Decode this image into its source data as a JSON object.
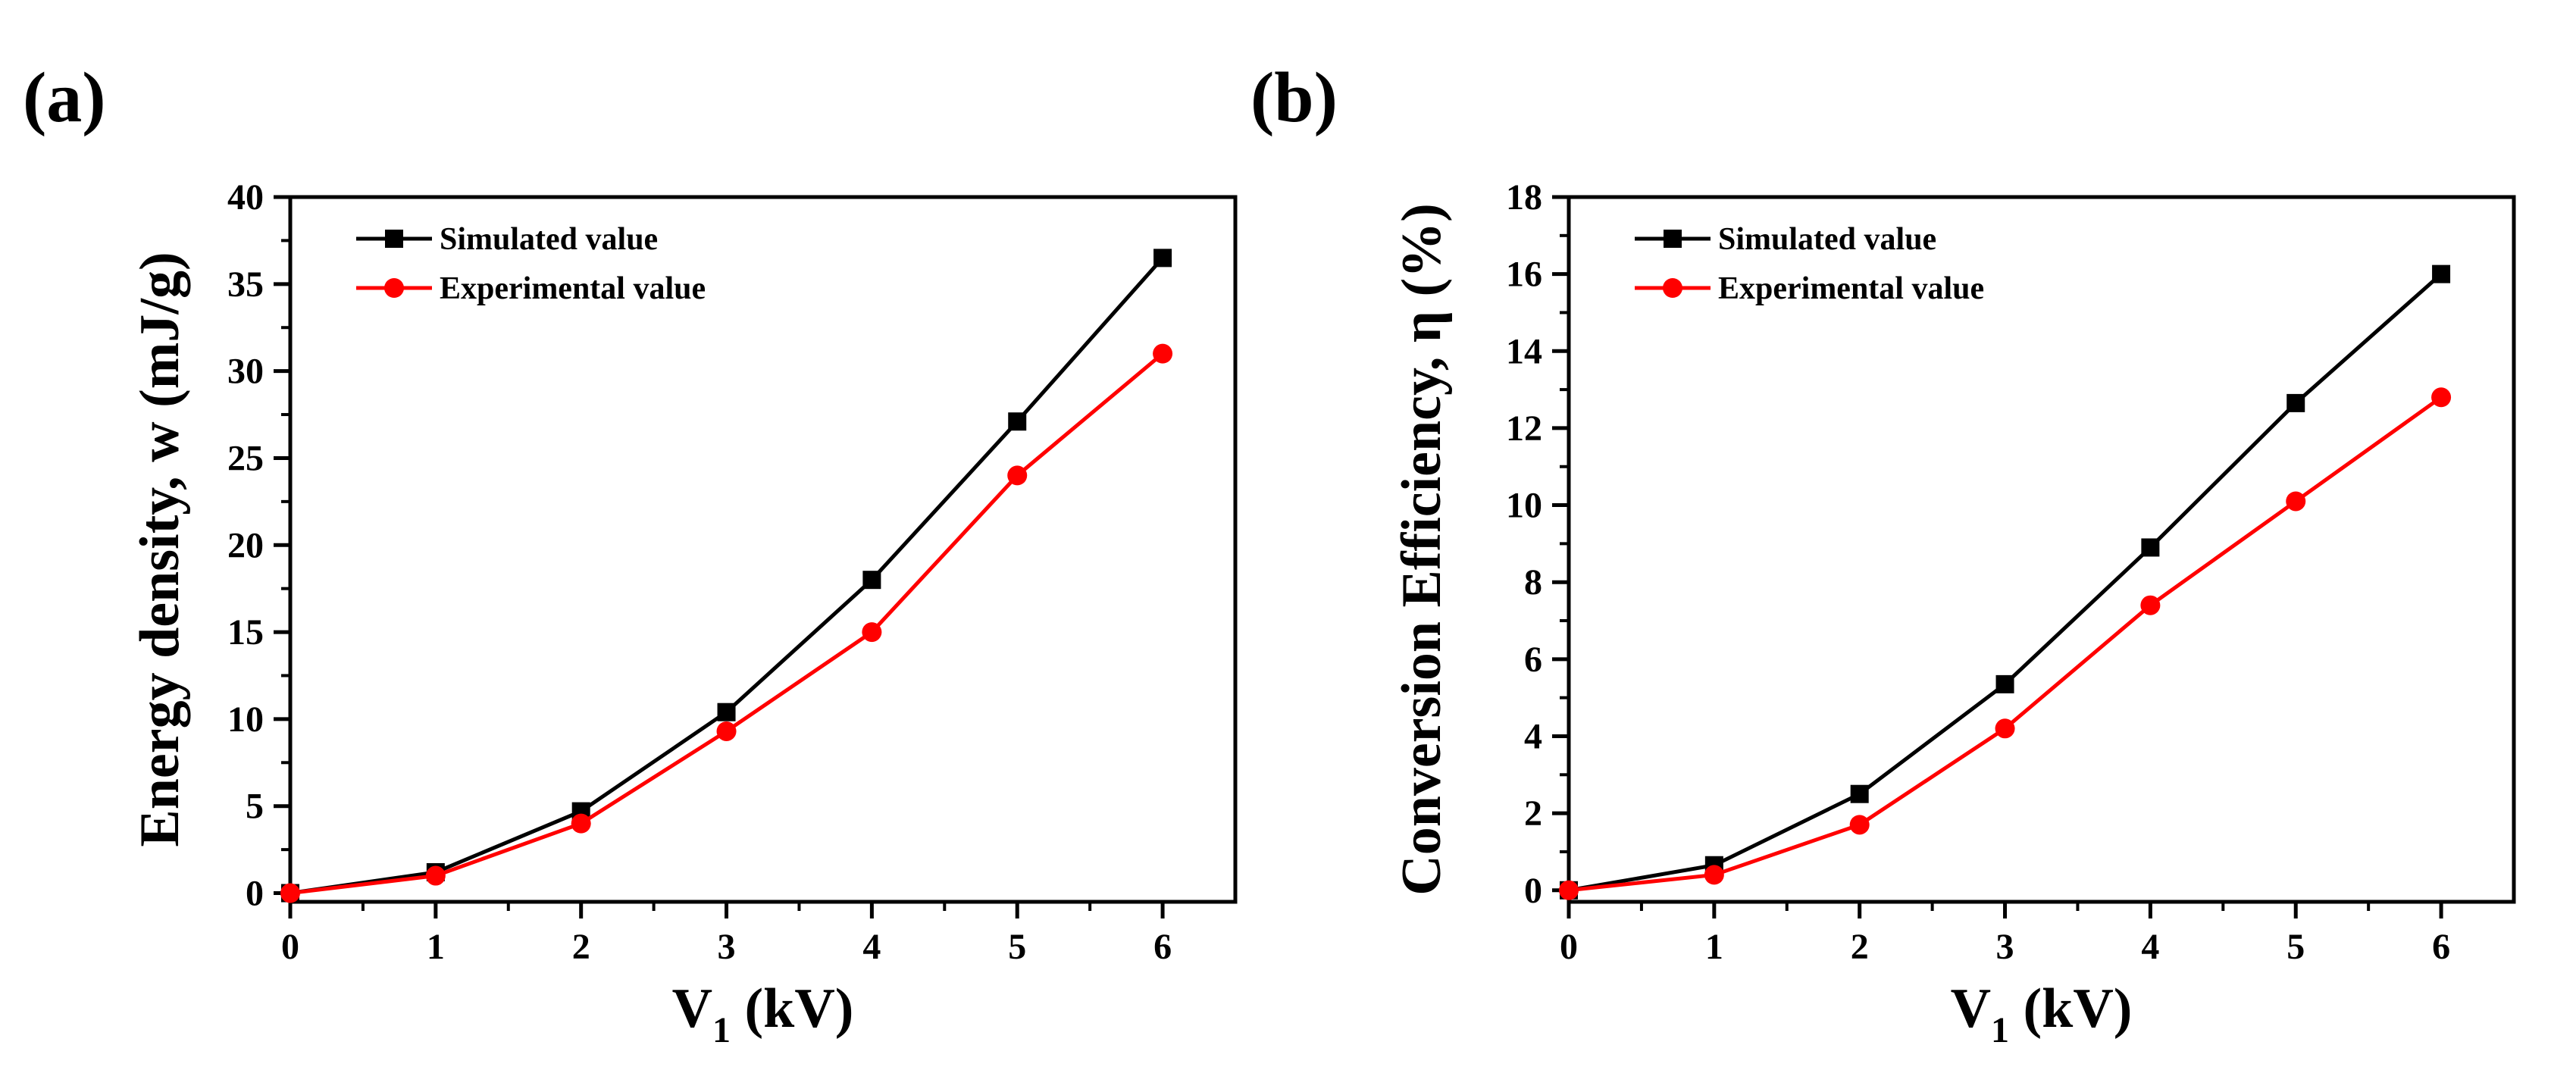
{
  "chart_data": [
    {
      "panel_label": "(a)",
      "type": "line",
      "xlabel": {
        "main": "V",
        "sub": "1",
        "rest": " (kV)"
      },
      "ylabel": "Energy density, w (mJ/g)",
      "xlim": [
        0,
        6.5
      ],
      "ylim": [
        -0.5,
        40
      ],
      "xticks": [
        0,
        1,
        2,
        3,
        4,
        5,
        6
      ],
      "yticks": [
        0,
        5,
        10,
        15,
        20,
        25,
        30,
        35,
        40
      ],
      "grid": false,
      "legend_position": "top-left",
      "x": [
        0,
        1,
        2,
        3,
        4,
        5,
        6
      ],
      "series": [
        {
          "name": "Simulated value",
          "color": "#000000",
          "marker": "square",
          "values": [
            0,
            1.2,
            4.7,
            10.4,
            18.0,
            27.1,
            36.5
          ]
        },
        {
          "name": "Experimental value",
          "color": "#ff0000",
          "marker": "circle",
          "values": [
            0,
            1.0,
            4.0,
            9.3,
            15.0,
            24.0,
            31.0
          ]
        }
      ]
    },
    {
      "panel_label": "(b)",
      "type": "line",
      "xlabel": {
        "main": "V",
        "sub": "1",
        "rest": " (kV)"
      },
      "ylabel": "Conversion Efficiency, η   (%)",
      "xlim": [
        0,
        6.5
      ],
      "ylim": [
        -0.3,
        18
      ],
      "xticks": [
        0,
        1,
        2,
        3,
        4,
        5,
        6
      ],
      "yticks": [
        0,
        2,
        4,
        6,
        8,
        10,
        12,
        14,
        16,
        18
      ],
      "grid": false,
      "legend_position": "top-left",
      "x": [
        0,
        1,
        2,
        3,
        4,
        5,
        6
      ],
      "series": [
        {
          "name": "Simulated value",
          "color": "#000000",
          "marker": "square",
          "values": [
            0,
            0.65,
            2.5,
            5.35,
            8.9,
            12.65,
            16.0
          ]
        },
        {
          "name": "Experimental value",
          "color": "#ff0000",
          "marker": "circle",
          "values": [
            0,
            0.4,
            1.7,
            4.2,
            7.4,
            10.1,
            12.8
          ]
        }
      ]
    }
  ]
}
